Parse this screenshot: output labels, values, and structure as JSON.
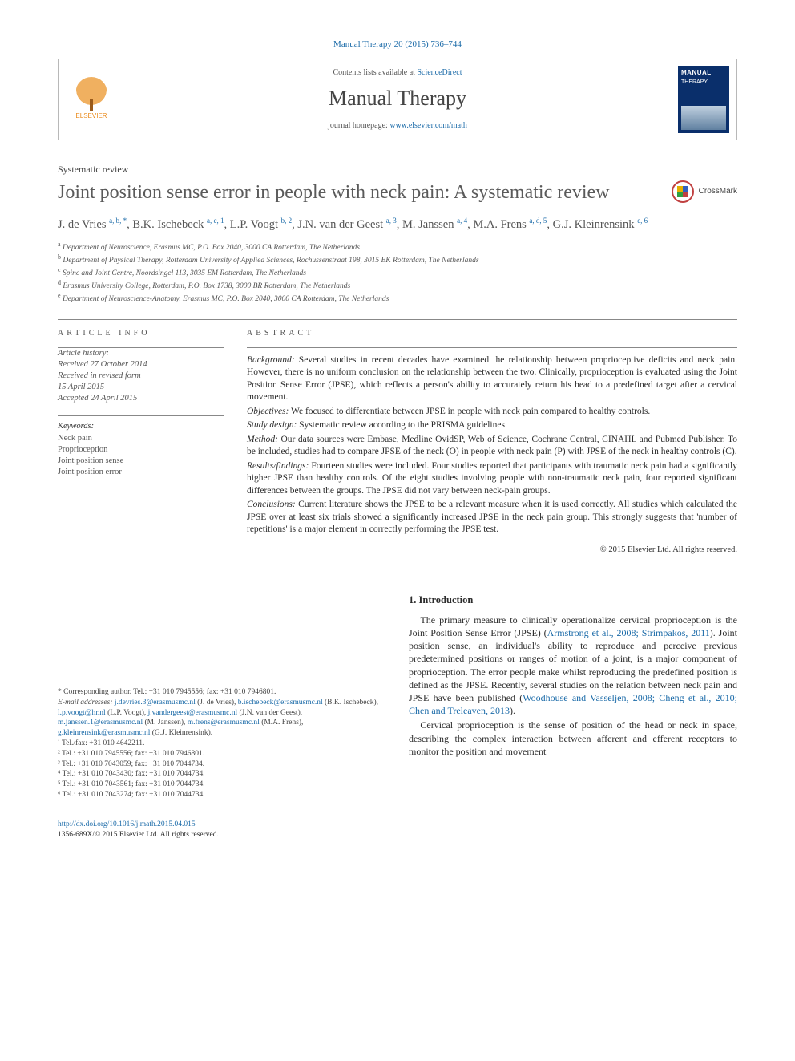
{
  "colors": {
    "link": "#1a6aa8",
    "text": "#2c2c2c",
    "muted": "#555555",
    "rule": "#888888",
    "elsevier_orange": "#ea8a1a",
    "cover_bg": "#0a2f6b"
  },
  "typography": {
    "base_family": "Times New Roman, Georgia, serif",
    "title_size_pt": 24,
    "journal_size_pt": 26,
    "body_size_pt": 12,
    "affil_size_pt": 9.5,
    "footnote_size_pt": 9.5
  },
  "header": {
    "citation": "Manual Therapy 20 (2015) 736–744",
    "contents_prefix": "Contents lists available at ",
    "contents_link": "ScienceDirect",
    "journal": "Manual Therapy",
    "homepage_prefix": "journal homepage: ",
    "homepage_link": "www.elsevier.com/math",
    "publisher": "ELSEVIER",
    "cover_title": "MANUAL",
    "cover_sub": "THERAPY"
  },
  "article": {
    "type": "Systematic review",
    "title": "Joint position sense error in people with neck pain: A systematic review",
    "crossmark": "CrossMark"
  },
  "authors_html": "J. de Vries <sup>a, b, *</sup>, B.K. Ischebeck <sup>a, c, 1</sup>, L.P. Voogt <sup>b, 2</sup>, J.N. van der Geest <sup>a, 3</sup>, M. Janssen <sup>a, 4</sup>, M.A. Frens <sup>a, d, 5</sup>, G.J. Kleinrensink <sup>e, 6</sup>",
  "affiliations": [
    {
      "sup": "a",
      "text": "Department of Neuroscience, Erasmus MC, P.O. Box 2040, 3000 CA Rotterdam, The Netherlands"
    },
    {
      "sup": "b",
      "text": "Department of Physical Therapy, Rotterdam University of Applied Sciences, Rochussenstraat 198, 3015 EK Rotterdam, The Netherlands"
    },
    {
      "sup": "c",
      "text": "Spine and Joint Centre, Noordsingel 113, 3035 EM Rotterdam, The Netherlands"
    },
    {
      "sup": "d",
      "text": "Erasmus University College, Rotterdam, P.O. Box 1738, 3000 BR Rotterdam, The Netherlands"
    },
    {
      "sup": "e",
      "text": "Department of Neuroscience-Anatomy, Erasmus MC, P.O. Box 2040, 3000 CA Rotterdam, The Netherlands"
    }
  ],
  "info": {
    "head": "ARTICLE INFO",
    "history_head": "Article history:",
    "history": [
      "Received 27 October 2014",
      "Received in revised form",
      "15 April 2015",
      "Accepted 24 April 2015"
    ],
    "keywords_head": "Keywords:",
    "keywords": [
      "Neck pain",
      "Proprioception",
      "Joint position sense",
      "Joint position error"
    ]
  },
  "abstract": {
    "head": "ABSTRACT",
    "paras": [
      {
        "label": "Background:",
        "text": " Several studies in recent decades have examined the relationship between proprioceptive deficits and neck pain. However, there is no uniform conclusion on the relationship between the two. Clinically, proprioception is evaluated using the Joint Position Sense Error (JPSE), which reflects a person's ability to accurately return his head to a predefined target after a cervical movement."
      },
      {
        "label": "Objectives:",
        "text": " We focused to differentiate between JPSE in people with neck pain compared to healthy controls."
      },
      {
        "label": "Study design:",
        "text": " Systematic review according to the PRISMA guidelines."
      },
      {
        "label": "Method:",
        "text": " Our data sources were Embase, Medline OvidSP, Web of Science, Cochrane Central, CINAHL and Pubmed Publisher. To be included, studies had to compare JPSE of the neck (O) in people with neck pain (P) with JPSE of the neck in healthy controls (C)."
      },
      {
        "label": "Results/findings:",
        "text": " Fourteen studies were included. Four studies reported that participants with traumatic neck pain had a significantly higher JPSE than healthy controls. Of the eight studies involving people with non-traumatic neck pain, four reported significant differences between the groups. The JPSE did not vary between neck-pain groups."
      },
      {
        "label": "Conclusions:",
        "text": " Current literature shows the JPSE to be a relevant measure when it is used correctly. All studies which calculated the JPSE over at least six trials showed a significantly increased JPSE in the neck pain group. This strongly suggests that 'number of repetitions' is a major element in correctly performing the JPSE test."
      }
    ],
    "copyright": "© 2015 Elsevier Ltd. All rights reserved."
  },
  "footnotes": {
    "corr": "* Corresponding author. Tel.: +31 010 7945556; fax: +31 010 7946801.",
    "email_label": "E-mail addresses:",
    "emails_html": " <a>j.devries.3@erasmusmc.nl</a> (J. de Vries), <a>b.ischebeck@erasmusmc.nl</a> (B.K. Ischebeck), <a>l.p.voogt@hr.nl</a> (L.P. Voogt), <a>j.vandergeest@erasmusmc.nl</a> (J.N. van der Geest), <a>m.janssen.1@erasmusmc.nl</a> (M. Janssen), <a>m.frens@erasmusmc.nl</a> (M.A. Frens), <a>g.kleinrensink@erasmusmc.nl</a> (G.J. Kleinrensink).",
    "lines": [
      "¹ Tel./fax: +31 010 4642211.",
      "² Tel.: +31 010 7945556; fax: +31 010 7946801.",
      "³ Tel.: +31 010 7043059; fax: +31 010 7044734.",
      "⁴ Tel.: +31 010 7043430; fax: +31 010 7044734.",
      "⁵ Tel.: +31 010 7043561; fax: +31 010 7044734.",
      "⁶ Tel.: +31 010 7043274; fax: +31 010 7044734."
    ]
  },
  "intro": {
    "head": "1. Introduction",
    "p1_pre": "The primary measure to clinically operationalize cervical proprioception is the Joint Position Sense Error (JPSE) (",
    "p1_link": "Armstrong et al., 2008; Strimpakos, 2011",
    "p1_mid": "). Joint position sense, an individual's ability to reproduce and perceive previous predetermined positions or ranges of motion of a joint, is a major component of proprioception. The error people make whilst reproducing the predefined position is defined as the JPSE. Recently, several studies on the relation between neck pain and JPSE have been published (",
    "p1_link2": "Woodhouse and Vasseljen, 2008; Cheng et al., 2010; Chen and Treleaven, 2013",
    "p1_post": ").",
    "p2": "Cervical proprioception is the sense of position of the head or neck in space, describing the complex interaction between afferent and efferent receptors to monitor the position and movement"
  },
  "doi": {
    "link": "http://dx.doi.org/10.1016/j.math.2015.04.015",
    "issn": "1356-689X/© 2015 Elsevier Ltd. All rights reserved."
  }
}
